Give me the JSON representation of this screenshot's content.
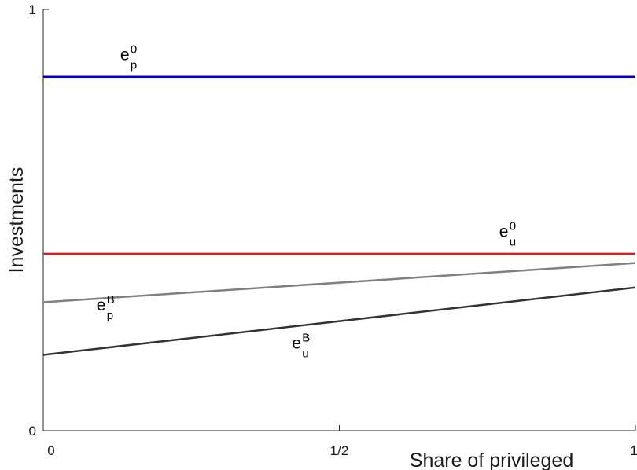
{
  "chart_data": {
    "type": "line",
    "xlabel": "Share of privileged",
    "ylabel": "Investments",
    "xlim": [
      0,
      1
    ],
    "ylim": [
      0,
      1
    ],
    "x_ticks": [
      {
        "value": 0,
        "label": "0"
      },
      {
        "value": 0.5,
        "label": "1/2"
      },
      {
        "value": 1,
        "label": "1"
      }
    ],
    "y_ticks": [
      {
        "value": 0,
        "label": "0"
      },
      {
        "value": 1,
        "label": "1"
      }
    ],
    "grid": false,
    "series": [
      {
        "label_base": "e",
        "label_sub": "p",
        "label_sup": "0",
        "color": "#0000cc",
        "x": [
          0,
          1
        ],
        "y": [
          0.84,
          0.84
        ],
        "label_at": [
          0.13,
          0.88
        ]
      },
      {
        "label_base": "e",
        "label_sub": "u",
        "label_sup": "0",
        "color": "#e41a1c",
        "x": [
          0,
          1
        ],
        "y": [
          0.42,
          0.42
        ],
        "label_at": [
          0.77,
          0.46
        ]
      },
      {
        "label_base": "e",
        "label_sub": "p",
        "label_sup": "B",
        "color": "#808080",
        "x": [
          0,
          1
        ],
        "y": [
          0.305,
          0.398
        ],
        "label_at": [
          0.09,
          0.285
        ]
      },
      {
        "label_base": "e",
        "label_sub": "u",
        "label_sup": "B",
        "color": "#333333",
        "x": [
          0,
          1
        ],
        "y": [
          0.18,
          0.34
        ],
        "label_at": [
          0.42,
          0.195
        ]
      }
    ]
  }
}
